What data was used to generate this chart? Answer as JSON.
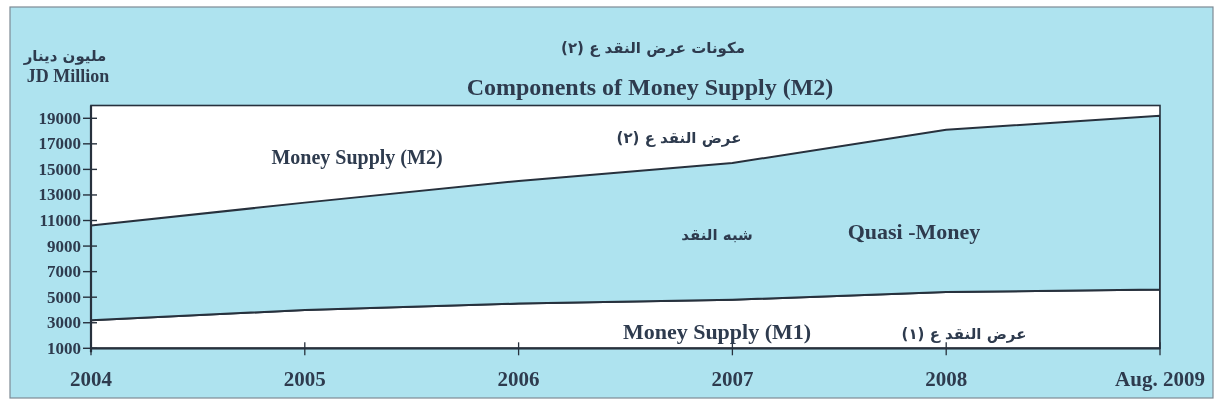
{
  "chart_data": {
    "type": "area",
    "title": "مكونات عرض النقد ع (٢)",
    "subtitle": "Components of Money Supply (M2)",
    "ylabel": "JD Million",
    "categories": [
      "2004",
      "2005",
      "2006",
      "2007",
      "2008",
      "Aug. 2009"
    ],
    "stacked": true,
    "series": [
      {
        "name": "Money Supply (M1)",
        "color": "#ffffff",
        "values": [
          3200,
          4000,
          4500,
          4800,
          5400,
          5600
        ]
      },
      {
        "name": "Quasi -Money",
        "color": "#aee3ef",
        "values": [
          7400,
          8400,
          9600,
          10700,
          12700,
          13600
        ]
      }
    ],
    "ylim": [
      1000,
      20000
    ],
    "yticks": [
      1000,
      3000,
      5000,
      7000,
      9000,
      11000,
      13000,
      15000,
      17000,
      19000
    ],
    "annotations": [
      "مليون دينار",
      "Money Supply (M2)",
      "عرض النقد ع (٢)",
      "شبه النقد",
      "عرض النقد ع (١)"
    ]
  }
}
